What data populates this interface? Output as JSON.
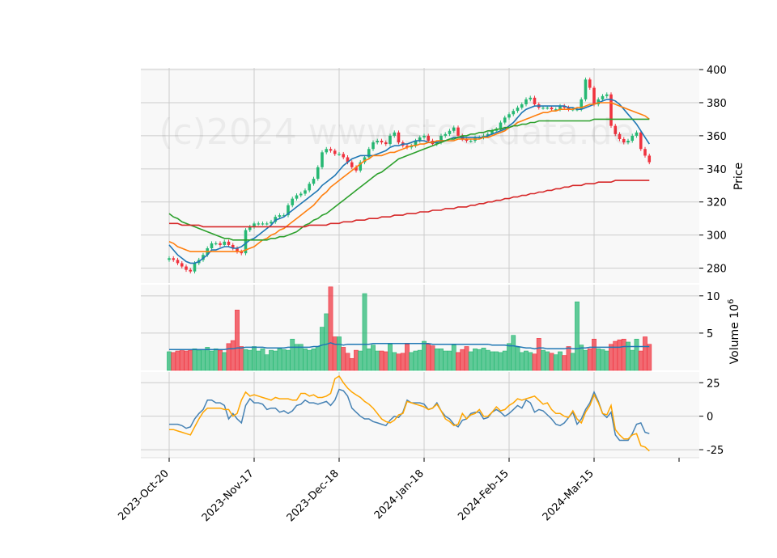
{
  "watermark": "(c)2024 www.stockdata.de",
  "colors": {
    "up": "#26b873",
    "down": "#f0333f",
    "panel_bg": "#f8f8f8",
    "grid": "#cccccc",
    "sma10": "#1f77b4",
    "sma20": "#ff7f0e",
    "sma50": "#2ca02c",
    "sma200": "#d62728",
    "vol_ma": "#1f77b4",
    "osc_a": "#4682b4",
    "osc_b": "#ffa500"
  },
  "chart_data": {
    "type": "candlestick",
    "x_tick_labels": [
      "2023-Oct-20",
      "2023-Nov-17",
      "2023-Dec-18",
      "2024-Jan-18",
      "2024-Feb-15",
      "2024-Mar-15"
    ],
    "x_tick_index": [
      0,
      20,
      40,
      60,
      80,
      100
    ],
    "price_panel": {
      "ylabel": "Price",
      "ylim": [
        271,
        401
      ],
      "yticks": [
        280,
        300,
        320,
        340,
        360,
        380,
        400
      ],
      "close": [
        286,
        285,
        283,
        281,
        279,
        278,
        283,
        285,
        288,
        292,
        295,
        295,
        294,
        296,
        294,
        292,
        290,
        289,
        303,
        305,
        307,
        307,
        307,
        307,
        308,
        311,
        312,
        312,
        318,
        322,
        324,
        325,
        327,
        331,
        334,
        341,
        350,
        352,
        351,
        349,
        349,
        347,
        344,
        341,
        339,
        344,
        347,
        352,
        356,
        357,
        356,
        355,
        360,
        362,
        356,
        354,
        353,
        354,
        357,
        359,
        360,
        357,
        355,
        356,
        360,
        361,
        363,
        365,
        360,
        358,
        357,
        357,
        359,
        359,
        360,
        361,
        363,
        364,
        368,
        371,
        373,
        375,
        377,
        379,
        382,
        383,
        379,
        377,
        377,
        377,
        376,
        376,
        378,
        377,
        376,
        376,
        376,
        382,
        394,
        389,
        379,
        382,
        384,
        385,
        366,
        361,
        358,
        356,
        357,
        360,
        362,
        352,
        348,
        344
      ],
      "sma": [
        {
          "name": "SMA10",
          "values": [
            294,
            291,
            288,
            286,
            284,
            283,
            283,
            284,
            286,
            288,
            291,
            291,
            292,
            293,
            293,
            292,
            292,
            293,
            295,
            297,
            298,
            300,
            302,
            304,
            306,
            309,
            310,
            311,
            313,
            315,
            317,
            319,
            321,
            323,
            325,
            327,
            330,
            332,
            334,
            336,
            339,
            342,
            344,
            346,
            347,
            348,
            348,
            348,
            348,
            349,
            350,
            351,
            353,
            354,
            354,
            355,
            355,
            356,
            357,
            357,
            357,
            356,
            356,
            356,
            357,
            357,
            358,
            359,
            359,
            359,
            359,
            359,
            359,
            359,
            359,
            360,
            361,
            362,
            363,
            364,
            366,
            368,
            371,
            374,
            376,
            377,
            378,
            378,
            378,
            378,
            378,
            378,
            378,
            378,
            377,
            377,
            376,
            376,
            377,
            378,
            379,
            380,
            381,
            382,
            382,
            381,
            379,
            376,
            373,
            370,
            367,
            363,
            359,
            355
          ]
        },
        {
          "name": "SMA20",
          "values": [
            296,
            295,
            293,
            292,
            291,
            290,
            290,
            290,
            290,
            290,
            290,
            290,
            290,
            290,
            290,
            290,
            290,
            290,
            291,
            292,
            293,
            295,
            297,
            298,
            300,
            301,
            303,
            304,
            306,
            308,
            310,
            312,
            314,
            316,
            318,
            321,
            324,
            326,
            329,
            331,
            333,
            335,
            337,
            339,
            341,
            343,
            345,
            346,
            348,
            348,
            348,
            349,
            350,
            350,
            351,
            352,
            353,
            354,
            354,
            355,
            355,
            356,
            356,
            357,
            357,
            357,
            357,
            357,
            358,
            358,
            358,
            358,
            358,
            358,
            359,
            359,
            360,
            361,
            362,
            363,
            365,
            366,
            368,
            369,
            370,
            371,
            372,
            373,
            374,
            374,
            375,
            375,
            376,
            376,
            376,
            376,
            377,
            377,
            378,
            379,
            379,
            380,
            380,
            380,
            380,
            379,
            378,
            377,
            376,
            375,
            374,
            373,
            372,
            370
          ]
        },
        {
          "name": "SMA50",
          "values": [
            313,
            311,
            310,
            308,
            307,
            306,
            305,
            304,
            303,
            302,
            301,
            300,
            299,
            298,
            298,
            297,
            297,
            297,
            297,
            297,
            297,
            297,
            297,
            297,
            298,
            298,
            299,
            299,
            300,
            301,
            302,
            304,
            306,
            307,
            309,
            310,
            312,
            313,
            315,
            317,
            319,
            321,
            323,
            325,
            327,
            329,
            331,
            333,
            335,
            337,
            338,
            340,
            342,
            344,
            346,
            347,
            348,
            349,
            350,
            351,
            352,
            353,
            354,
            355,
            356,
            357,
            358,
            358,
            359,
            360,
            360,
            361,
            361,
            362,
            362,
            363,
            363,
            364,
            364,
            365,
            365,
            366,
            366,
            367,
            367,
            368,
            368,
            369,
            369,
            369,
            369,
            369,
            369,
            369,
            369,
            369,
            369,
            369,
            369,
            369,
            370,
            370,
            370,
            370,
            370,
            370,
            370,
            370,
            370,
            370,
            370,
            370,
            370,
            370
          ]
        },
        {
          "name": "SMA200",
          "values": [
            307,
            307,
            307,
            306,
            306,
            306,
            306,
            306,
            305,
            305,
            305,
            305,
            305,
            305,
            305,
            305,
            305,
            305,
            305,
            305,
            305,
            305,
            305,
            305,
            305,
            305,
            305,
            305,
            305,
            305,
            305,
            305,
            305,
            306,
            306,
            306,
            306,
            306,
            307,
            307,
            307,
            308,
            308,
            308,
            309,
            309,
            309,
            310,
            310,
            310,
            311,
            311,
            311,
            312,
            312,
            312,
            313,
            313,
            313,
            314,
            314,
            314,
            315,
            315,
            315,
            316,
            316,
            316,
            317,
            317,
            317,
            318,
            318,
            319,
            319,
            320,
            320,
            321,
            321,
            322,
            322,
            323,
            323,
            324,
            324,
            325,
            325,
            326,
            326,
            327,
            327,
            328,
            328,
            329,
            329,
            330,
            330,
            330,
            331,
            331,
            331,
            332,
            332,
            332,
            332,
            333,
            333,
            333,
            333,
            333,
            333,
            333,
            333,
            333
          ]
        }
      ]
    },
    "volume_panel": {
      "ylabel": "Volume  10^6",
      "ylim": [
        0,
        11.5
      ],
      "yticks": [
        5,
        10
      ],
      "values": [
        2.5,
        2.4,
        2.6,
        2.8,
        2.6,
        2.7,
        2.9,
        2.7,
        2.8,
        3.1,
        2.6,
        2.9,
        2.7,
        2.4,
        3.6,
        4.0,
        8.1,
        3.2,
        2.8,
        2.7,
        3.2,
        2.6,
        2.9,
        2.1,
        2.7,
        2.6,
        2.9,
        2.8,
        2.7,
        4.2,
        3.5,
        3.5,
        2.9,
        2.7,
        2.9,
        3.2,
        5.8,
        7.6,
        11.2,
        4.5,
        4.5,
        3.1,
        2.3,
        1.6,
        2.7,
        2.6,
        10.3,
        2.9,
        3.4,
        2.6,
        2.6,
        2.5,
        3.5,
        2.4,
        2.2,
        2.3,
        3.5,
        2.4,
        2.6,
        2.7,
        3.9,
        3.5,
        3.3,
        2.9,
        2.9,
        2.6,
        2.6,
        3.4,
        2.4,
        2.8,
        3.2,
        2.5,
        2.9,
        2.8,
        3.0,
        2.7,
        2.5,
        2.5,
        2.4,
        2.6,
        3.6,
        4.7,
        3.1,
        2.4,
        2.6,
        2.4,
        2.2,
        4.3,
        2.7,
        2.5,
        2.3,
        2.1,
        2.5,
        2.0,
        3.2,
        2.3,
        9.2,
        3.4,
        2.7,
        2.9,
        4.2,
        2.9,
        2.8,
        2.6,
        3.5,
        3.9,
        4.1,
        4.2,
        3.8,
        2.7,
        4.2,
        2.6,
        4.5,
        3.5
      ],
      "ma_values": [
        2.8,
        2.8,
        2.8,
        2.8,
        2.8,
        2.8,
        2.8,
        2.8,
        2.8,
        2.8,
        2.8,
        2.8,
        2.8,
        2.8,
        2.9,
        2.9,
        3.0,
        3.0,
        3.1,
        3.1,
        3.1,
        3.1,
        3.1,
        3.0,
        3.0,
        3.0,
        3.0,
        3.0,
        3.1,
        3.1,
        3.1,
        3.1,
        3.1,
        3.1,
        3.2,
        3.2,
        3.4,
        3.5,
        3.7,
        3.5,
        3.5,
        3.4,
        3.5,
        3.5,
        3.5,
        3.5,
        3.5,
        3.5,
        3.6,
        3.6,
        3.6,
        3.6,
        3.6,
        3.6,
        3.6,
        3.6,
        3.6,
        3.6,
        3.6,
        3.6,
        3.6,
        3.6,
        3.5,
        3.5,
        3.5,
        3.5,
        3.5,
        3.5,
        3.5,
        3.5,
        3.5,
        3.5,
        3.5,
        3.5,
        3.5,
        3.5,
        3.4,
        3.4,
        3.4,
        3.4,
        3.3,
        3.3,
        3.2,
        3.1,
        3.0,
        3.0,
        2.9,
        3.0,
        3.0,
        2.9,
        2.9,
        2.9,
        2.9,
        2.9,
        3.0,
        2.9,
        2.9,
        3.0,
        3.0,
        3.1,
        3.1,
        3.1,
        3.1,
        3.1,
        3.1,
        3.1,
        3.1,
        3.2,
        3.2,
        3.2,
        3.2,
        3.2,
        3.2,
        3.2
      ]
    },
    "oscillator_panel": {
      "ylim": [
        -31,
        33
      ],
      "yticks": [
        -25,
        0,
        25
      ],
      "series": [
        {
          "values": [
            -6,
            -6,
            -6,
            -7,
            -9,
            -8,
            -2,
            2,
            5,
            12,
            12,
            10,
            10,
            8,
            -2,
            2,
            -2,
            -5,
            8,
            13,
            10,
            10,
            9,
            5,
            6,
            6,
            3,
            4,
            2,
            4,
            8,
            9,
            12,
            10,
            10,
            9,
            10,
            11,
            8,
            12,
            20,
            19,
            15,
            6,
            3,
            0,
            -2,
            -2,
            -4,
            -5,
            -6,
            -7,
            -3,
            0,
            -1,
            3,
            12,
            10,
            10,
            10,
            9,
            5,
            6,
            10,
            4,
            0,
            -2,
            -6,
            -8,
            -3,
            -2,
            2,
            3,
            3,
            -2,
            -1,
            3,
            5,
            3,
            0,
            2,
            5,
            8,
            6,
            12,
            10,
            3,
            5,
            4,
            1,
            -2,
            -6,
            -7,
            -5,
            -1,
            3,
            -6,
            -2,
            5,
            10,
            18,
            11,
            2,
            -1,
            3,
            -14,
            -18,
            -18,
            -18,
            -13,
            -6,
            -5,
            -12,
            -13
          ]
        },
        {
          "values": [
            -10,
            -10,
            -11,
            -12,
            -13,
            -14,
            -8,
            -2,
            3,
            6,
            6,
            6,
            6,
            5,
            5,
            0,
            2,
            12,
            18,
            15,
            16,
            15,
            14,
            13,
            12,
            14,
            13,
            13,
            13,
            12,
            12,
            17,
            17,
            15,
            16,
            14,
            14,
            15,
            17,
            28,
            30,
            25,
            21,
            18,
            16,
            14,
            11,
            9,
            6,
            2,
            -2,
            -4,
            -5,
            -3,
            1,
            2,
            11,
            10,
            9,
            8,
            7,
            5,
            6,
            9,
            4,
            -2,
            -4,
            -7,
            -6,
            2,
            -2,
            1,
            2,
            5,
            0,
            0,
            3,
            7,
            4,
            5,
            8,
            10,
            13,
            12,
            13,
            14,
            15,
            12,
            9,
            10,
            5,
            2,
            2,
            0,
            -1,
            4,
            -2,
            -5,
            3,
            8,
            16,
            10,
            2,
            1,
            8,
            -10,
            -14,
            -17,
            -17,
            -14,
            -13,
            -22,
            -23,
            -26
          ]
        }
      ]
    }
  }
}
